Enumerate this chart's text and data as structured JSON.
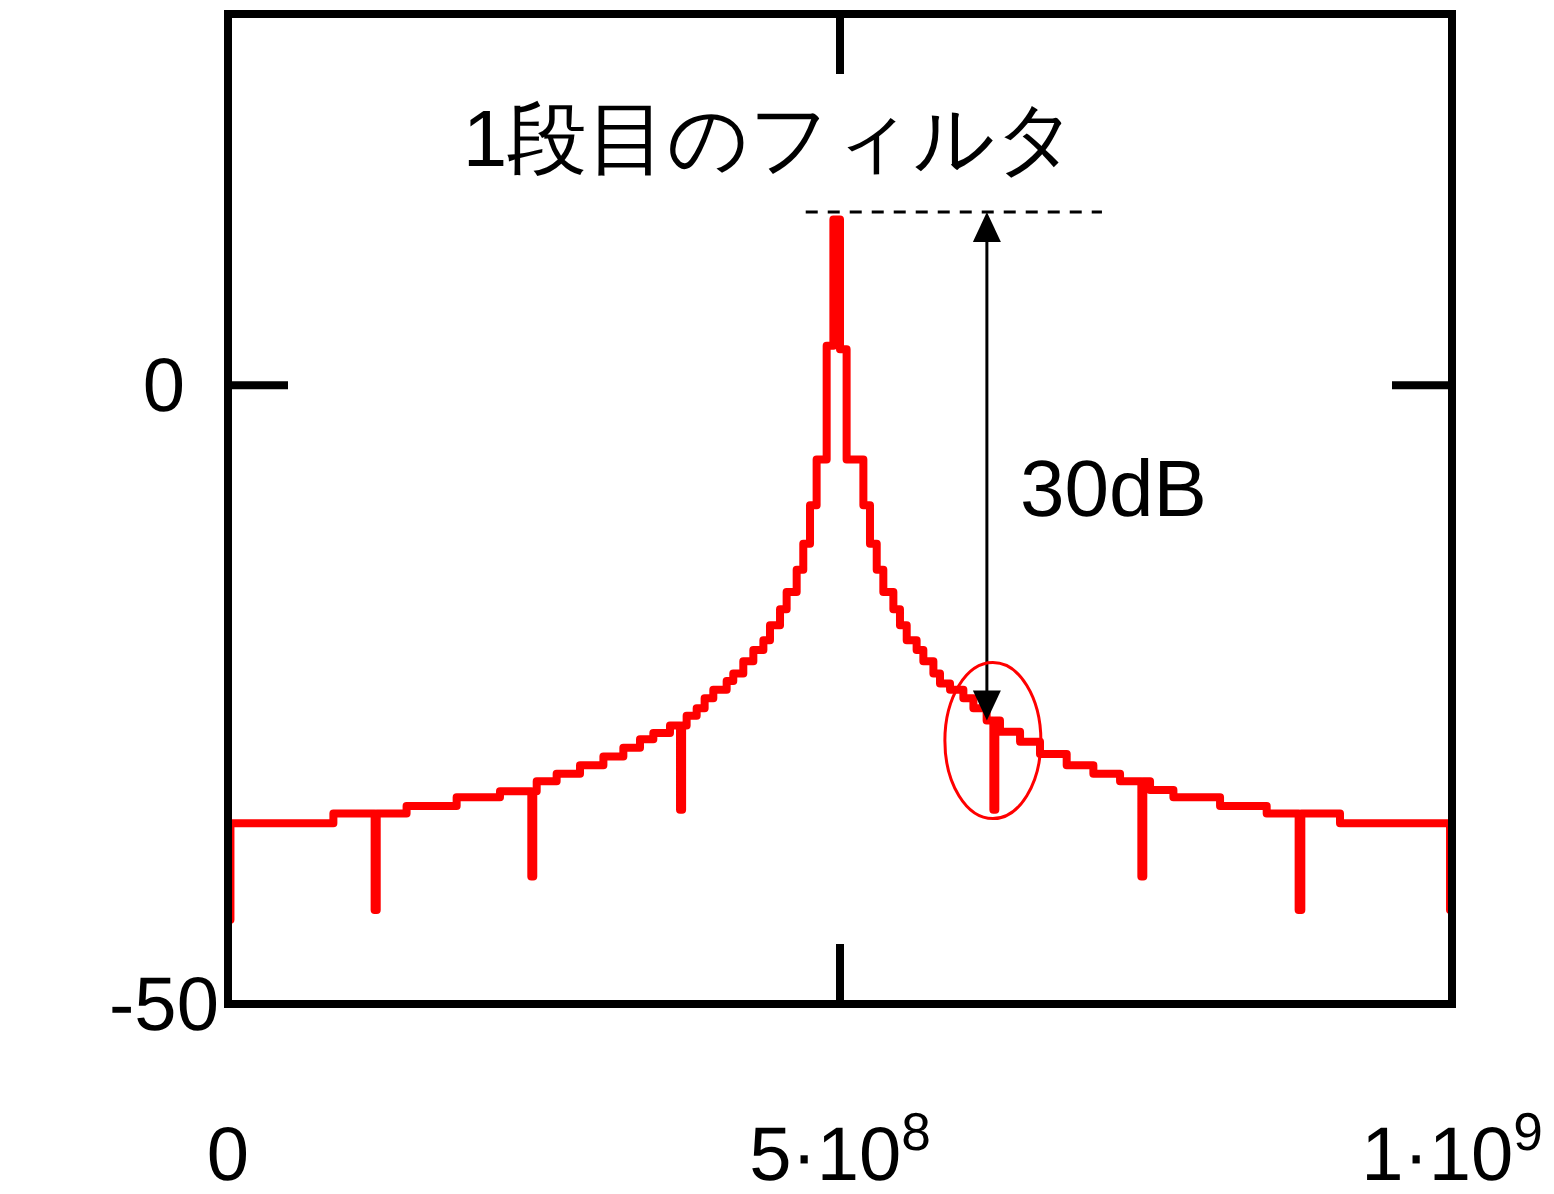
{
  "chart_data": {
    "type": "step",
    "title": "1段目のフィルタ",
    "annotations": [
      "30dB"
    ],
    "x": [
      0,
      2000000,
      86100000,
      119800000,
      121500000,
      145900000,
      186800000,
      222200000,
      247800000,
      249400000,
      252200000,
      268500000,
      287600000,
      306700000,
      323000000,
      336600000,
      347500000,
      361100000,
      369300000,
      371000000,
      374700000,
      382900000,
      389400000,
      396500000,
      407400000,
      412800000,
      421000000,
      429200000,
      437400000,
      442800000,
      451000000,
      456400000,
      464600000,
      470000000,
      475500000,
      480900000,
      489100000,
      494600000,
      500000000,
      505400000,
      519100000,
      524500000,
      530000000,
      535400000,
      543600000,
      549000000,
      554500000,
      562600000,
      568100000,
      576300000,
      581700000,
      589900000,
      600800000,
      609000000,
      619800000,
      625300000,
      626900000,
      630700000,
      647100000,
      663400000,
      685200000,
      707000000,
      728800000,
      746200000,
      747800000,
      753300000,
      772400000,
      810500000,
      848600000,
      874700000,
      876900000,
      908500000,
      998400000,
      1000000000
    ],
    "values": [
      -43.2,
      -35.4,
      -34.6,
      -42.4,
      -34.6,
      -34.0,
      -33.3,
      -32.8,
      -39.7,
      -32.8,
      -32.0,
      -31.4,
      -30.7,
      -30.0,
      -29.3,
      -28.6,
      -28.1,
      -27.5,
      -34.3,
      -27.5,
      -26.7,
      -26.1,
      -25.3,
      -24.6,
      -23.9,
      -23.3,
      -22.3,
      -21.4,
      -20.6,
      -19.4,
      -18.1,
      -16.7,
      -14.9,
      -12.8,
      -9.7,
      -6.0,
      3.2,
      13.4,
      2.9,
      -6.0,
      -9.7,
      -12.8,
      -14.9,
      -16.7,
      -18.1,
      -19.4,
      -20.6,
      -21.4,
      -22.3,
      -23.3,
      -24.1,
      -24.6,
      -25.3,
      -26.1,
      -27.1,
      -34.3,
      -27.1,
      -28.0,
      -28.8,
      -29.8,
      -30.7,
      -31.4,
      -32.0,
      -39.7,
      -32.0,
      -32.7,
      -33.3,
      -34.0,
      -34.6,
      -42.4,
      -34.6,
      -35.4,
      -42.4,
      -42.4
    ],
    "color": "#ff0000",
    "line_style": "solid",
    "marker": "none",
    "grid": false,
    "xlim": [
      0,
      1000000000
    ],
    "xticks": [
      0,
      {
        "value": 500000000,
        "label": "5·10$^{8}$"
      },
      {
        "value": 1000000000,
        "label": "1·10$^{9}$"
      }
    ],
    "ylim": [
      -50,
      30
    ],
    "yticks": [
      0,
      -50
    ],
    "ref_lines": [
      {
        "axis": "y",
        "value": 14,
        "color": "#000000",
        "line_style": "dashed"
      }
    ]
  }
}
